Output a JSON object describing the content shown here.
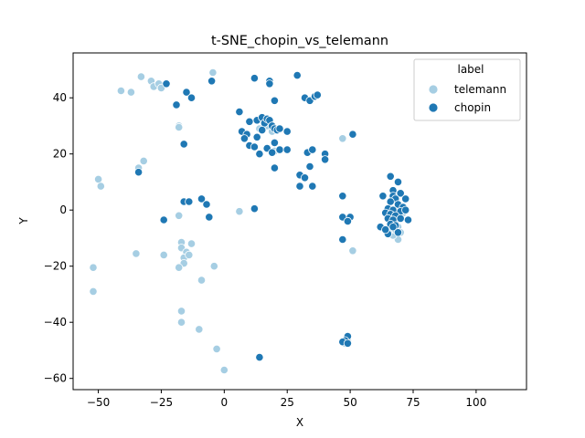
{
  "chart_data": {
    "type": "scatter",
    "title": "t-SNE_chopin_vs_telemann",
    "xlabel": "X",
    "ylabel": "Y",
    "xlim": [
      -60,
      120
    ],
    "ylim": [
      -64,
      56
    ],
    "xticks": [
      -50,
      -25,
      0,
      25,
      50,
      75,
      100
    ],
    "yticks": [
      -60,
      -40,
      -20,
      0,
      20,
      40
    ],
    "grid": false,
    "legend": {
      "title": "label",
      "placement": "top-right",
      "entries": [
        "telemann",
        "chopin"
      ]
    },
    "colors": {
      "telemann": "#a6cee3",
      "chopin": "#1f78b4"
    },
    "series": [
      {
        "name": "telemann",
        "points": [
          [
            -41,
            42.5
          ],
          [
            -37,
            42
          ],
          [
            -33,
            47.5
          ],
          [
            -29,
            46
          ],
          [
            -28,
            44
          ],
          [
            -26,
            45
          ],
          [
            -25,
            43.5
          ],
          [
            -4.5,
            49
          ],
          [
            -18,
            30
          ],
          [
            -18,
            29.5
          ],
          [
            -34,
            15
          ],
          [
            -32,
            17.5
          ],
          [
            -50,
            11
          ],
          [
            -49,
            8.5
          ],
          [
            -18,
            -2
          ],
          [
            6,
            -0.5
          ],
          [
            -52,
            -20.5
          ],
          [
            -52,
            -29
          ],
          [
            -35,
            -15.5
          ],
          [
            -24,
            -16
          ],
          [
            -17,
            -11.5
          ],
          [
            -17,
            -13.5
          ],
          [
            -15,
            -15
          ],
          [
            -16,
            -17
          ],
          [
            -16,
            -19
          ],
          [
            -14,
            -16
          ],
          [
            -13,
            -12
          ],
          [
            -18,
            -20.5
          ],
          [
            -9,
            -25
          ],
          [
            -4,
            -20
          ],
          [
            -17,
            -36
          ],
          [
            -17,
            -40
          ],
          [
            -10,
            -42.5
          ],
          [
            -3,
            -49.5
          ],
          [
            0,
            -57
          ],
          [
            47,
            25.5
          ],
          [
            51,
            -14.5
          ],
          [
            48,
            -47.5
          ],
          [
            49,
            -46.5
          ],
          [
            65,
            -3
          ],
          [
            67,
            -5
          ],
          [
            68,
            -3
          ],
          [
            69,
            -6
          ],
          [
            70,
            -2
          ],
          [
            69,
            -10.5
          ],
          [
            67,
            -9
          ],
          [
            66,
            -7
          ],
          [
            68,
            -4
          ],
          [
            70,
            -8
          ],
          [
            64,
            -1
          ],
          [
            69,
            0
          ],
          [
            71,
            -1
          ],
          [
            67,
            -2
          ],
          [
            66,
            -4
          ],
          [
            68,
            -7
          ],
          [
            17,
            30
          ],
          [
            16,
            31
          ],
          [
            19,
            28
          ],
          [
            20,
            21
          ],
          [
            14,
            29
          ],
          [
            18,
            32
          ],
          [
            36,
            40.5
          ]
        ]
      },
      {
        "name": "chopin",
        "points": [
          [
            -23,
            45
          ],
          [
            -15,
            42
          ],
          [
            -13,
            40
          ],
          [
            -19,
            37.5
          ],
          [
            -5,
            46
          ],
          [
            12,
            47
          ],
          [
            18,
            46
          ],
          [
            18,
            45
          ],
          [
            29,
            48
          ],
          [
            20,
            39
          ],
          [
            32,
            40
          ],
          [
            34,
            39
          ],
          [
            36,
            40.5
          ],
          [
            37,
            41
          ],
          [
            6,
            35
          ],
          [
            10,
            31.5
          ],
          [
            13,
            32
          ],
          [
            15,
            33
          ],
          [
            16,
            31
          ],
          [
            17,
            32.5
          ],
          [
            18,
            32
          ],
          [
            15,
            28.5
          ],
          [
            19,
            30
          ],
          [
            20,
            29
          ],
          [
            21,
            28.5
          ],
          [
            22,
            29
          ],
          [
            25,
            28
          ],
          [
            7,
            28
          ],
          [
            9,
            27
          ],
          [
            8,
            25.5
          ],
          [
            13,
            26
          ],
          [
            10,
            23
          ],
          [
            12,
            22.5
          ],
          [
            14,
            20
          ],
          [
            17,
            22
          ],
          [
            19,
            20.5
          ],
          [
            20,
            24
          ],
          [
            22,
            21.5
          ],
          [
            25,
            21.5
          ],
          [
            20,
            15
          ],
          [
            33,
            20.5
          ],
          [
            35,
            21.5
          ],
          [
            40,
            20
          ],
          [
            40,
            18
          ],
          [
            34,
            15.5
          ],
          [
            30,
            12.5
          ],
          [
            32,
            11.5
          ],
          [
            30,
            8.5
          ],
          [
            35,
            8.5
          ],
          [
            51,
            27
          ],
          [
            -16,
            23.5
          ],
          [
            -34,
            13.5
          ],
          [
            -16,
            3
          ],
          [
            -14,
            3
          ],
          [
            -9,
            4
          ],
          [
            -7,
            2
          ],
          [
            12,
            0.5
          ],
          [
            -24,
            -3.5
          ],
          [
            -6,
            -2.5
          ],
          [
            47,
            5
          ],
          [
            47,
            -2.5
          ],
          [
            50,
            -2.5
          ],
          [
            49,
            -4
          ],
          [
            47,
            -10.5
          ],
          [
            14,
            -52.5
          ],
          [
            49,
            -45
          ],
          [
            48,
            -46.5
          ],
          [
            47,
            -47
          ],
          [
            49,
            -47.5
          ],
          [
            66,
            12
          ],
          [
            69,
            10
          ],
          [
            67,
            7
          ],
          [
            70,
            6
          ],
          [
            67,
            5
          ],
          [
            72,
            4
          ],
          [
            63,
            5
          ],
          [
            68,
            4
          ],
          [
            66,
            3
          ],
          [
            69,
            2
          ],
          [
            71,
            1
          ],
          [
            65,
            0.5
          ],
          [
            67,
            0
          ],
          [
            70,
            -0.5
          ],
          [
            72,
            0
          ],
          [
            64,
            -1
          ],
          [
            66,
            -1.5
          ],
          [
            68,
            -2
          ],
          [
            65,
            -3
          ],
          [
            67,
            -3.5
          ],
          [
            70,
            -3
          ],
          [
            73,
            -3.5
          ],
          [
            62,
            -6
          ],
          [
            66,
            -5
          ],
          [
            68,
            -5.5
          ],
          [
            65,
            -8.5
          ],
          [
            67,
            -6
          ],
          [
            69,
            -8
          ],
          [
            64,
            -7
          ]
        ]
      }
    ]
  }
}
